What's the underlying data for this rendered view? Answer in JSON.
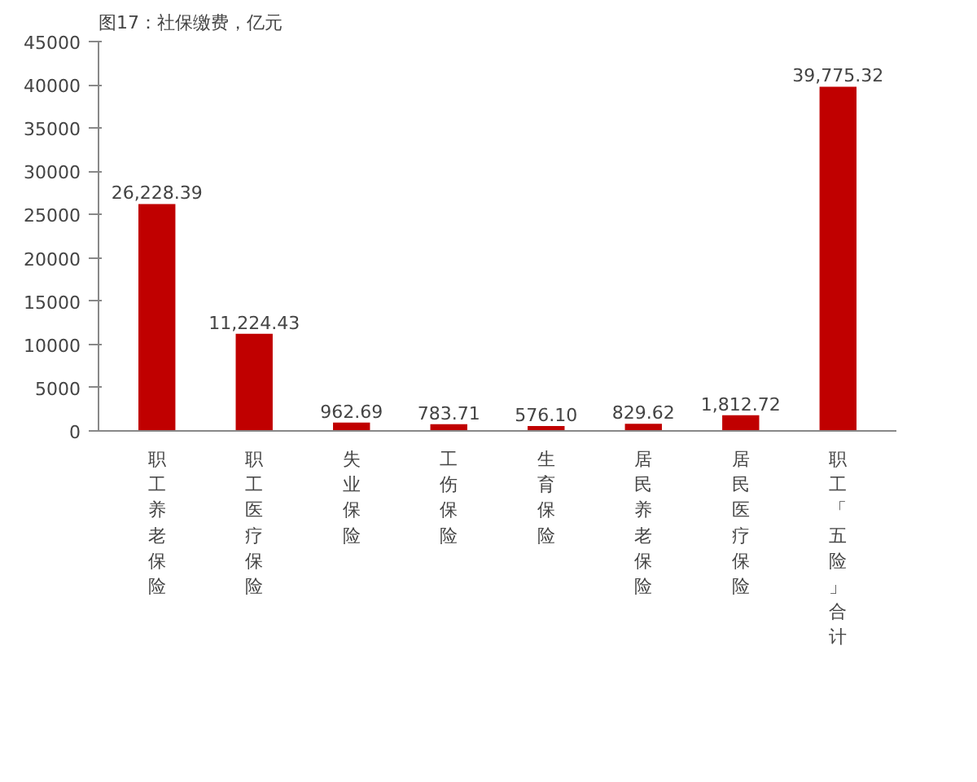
{
  "chart_data": {
    "type": "bar",
    "title": "图17：社保缴费，亿元",
    "categories": [
      "职工养老保险",
      "职工医疗保险",
      "失业保险",
      "工伤保险",
      "生育保险",
      "居民养老保险",
      "居民医疗保险",
      "职工「五险」合计"
    ],
    "values": [
      26228.39,
      11224.43,
      962.69,
      783.71,
      576.1,
      829.62,
      1812.72,
      39775.32
    ],
    "value_labels": [
      "26,228.39",
      "11,224.43",
      "962.69",
      "783.71",
      "576.10",
      "829.62",
      "1,812.72",
      "39,775.32"
    ],
    "color": "#c00000",
    "ylim": [
      0,
      45000
    ],
    "yticks": [
      0,
      5000,
      10000,
      15000,
      20000,
      25000,
      30000,
      35000,
      40000,
      45000
    ],
    "grid": false
  }
}
